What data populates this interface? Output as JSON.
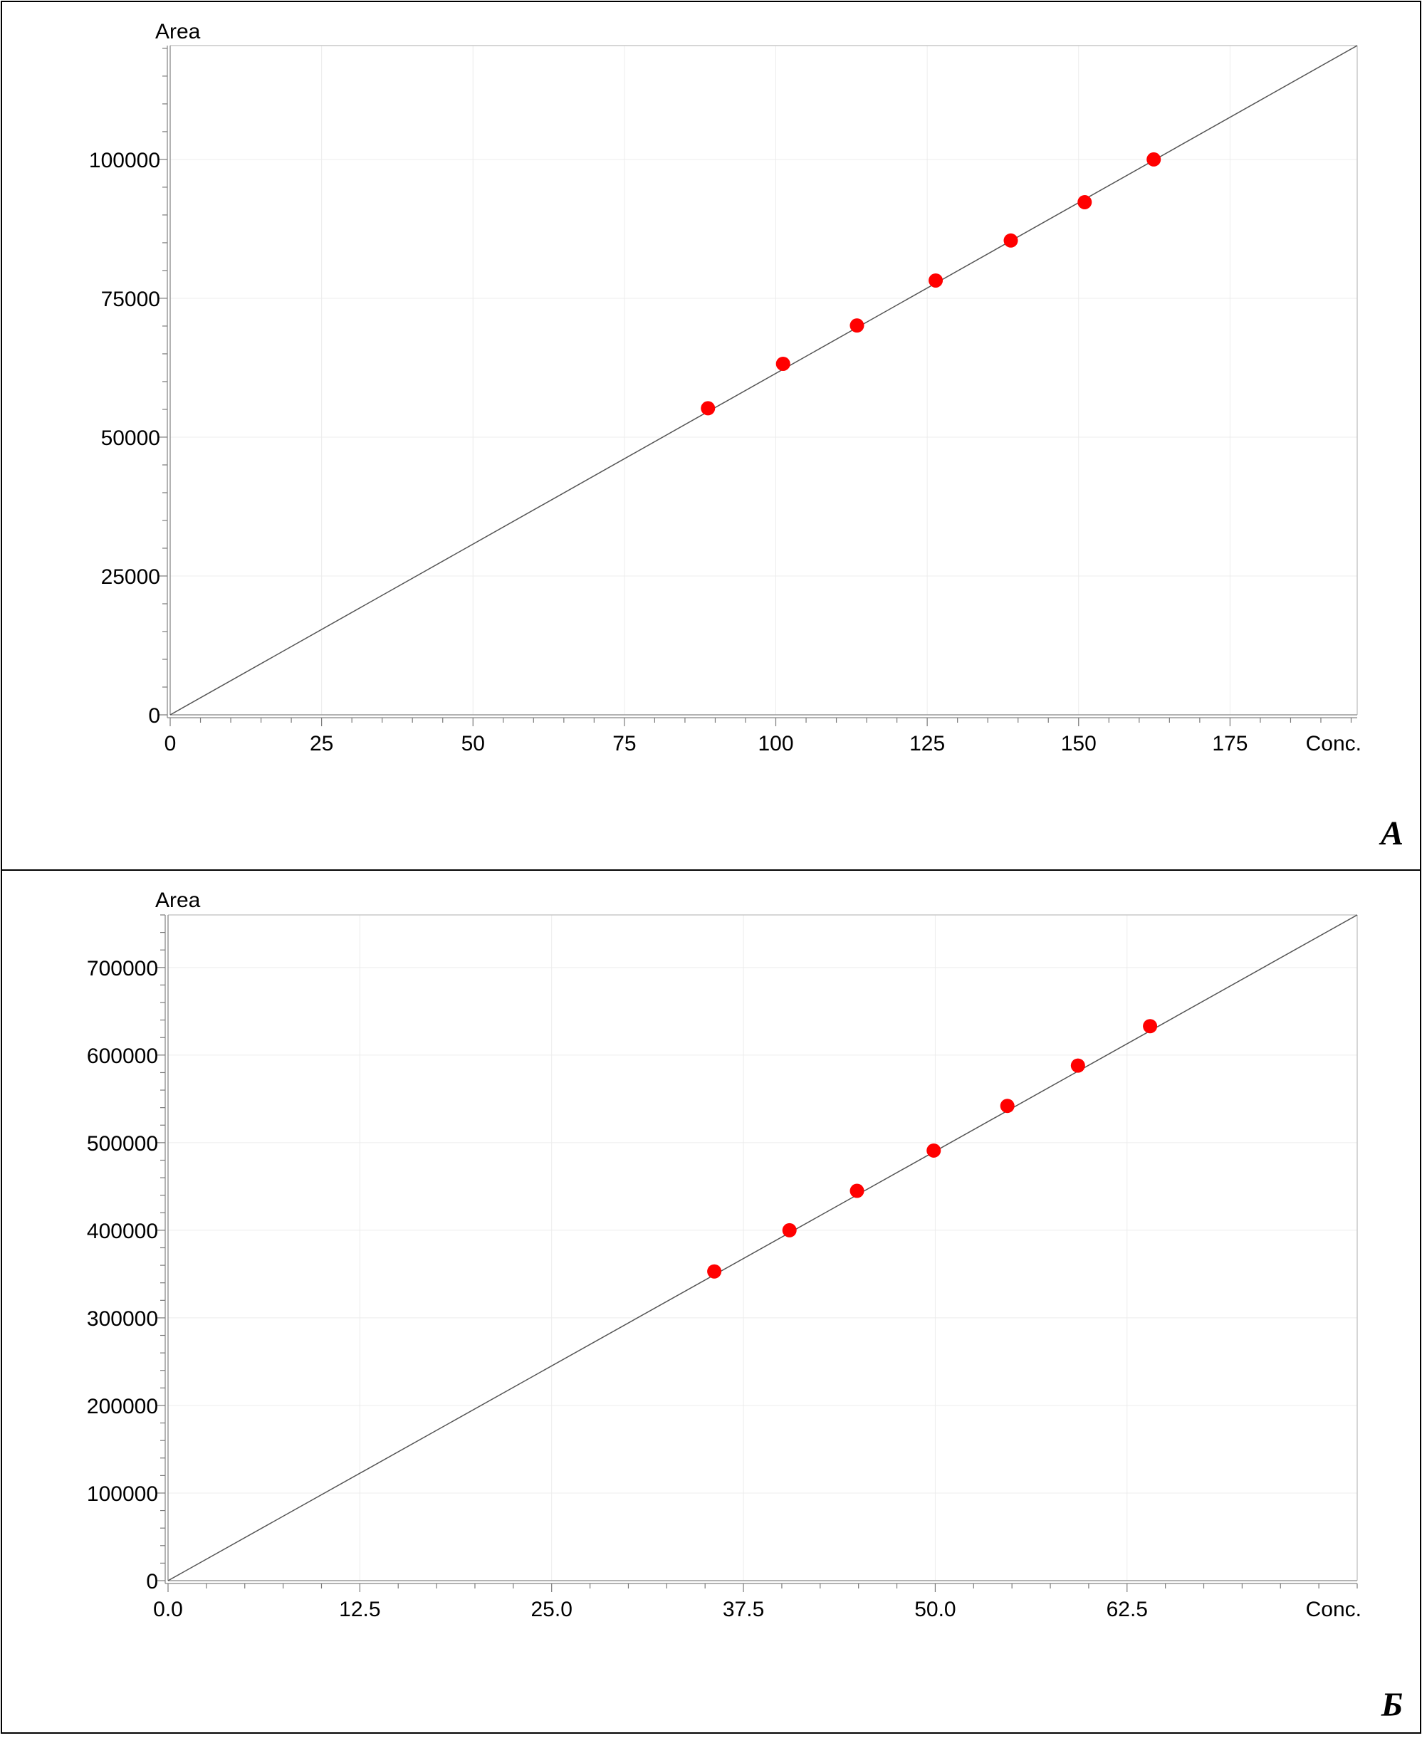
{
  "chart_data": [
    {
      "type": "scatter",
      "panel_label": "A",
      "xlabel": "Conc.",
      "ylabel": "Area",
      "xlim": [
        0,
        196
      ],
      "ylim": [
        0,
        120500
      ],
      "xticks": [
        "0",
        "25",
        "50",
        "75",
        "100",
        "125",
        "150",
        "175"
      ],
      "xtick_values": [
        0,
        25,
        50,
        75,
        100,
        125,
        150,
        175
      ],
      "yticks": [
        "0",
        "25000",
        "50000",
        "75000",
        "100000"
      ],
      "ytick_values": [
        0,
        25000,
        50000,
        75000,
        100000
      ],
      "grid": true,
      "fit_line": {
        "x": [
          0,
          196
        ],
        "y": [
          0,
          120500
        ]
      },
      "points": [
        {
          "x": 88.8,
          "y": 55200
        },
        {
          "x": 101.2,
          "y": 63200
        },
        {
          "x": 113.4,
          "y": 70100
        },
        {
          "x": 126.4,
          "y": 78200
        },
        {
          "x": 138.8,
          "y": 85400
        },
        {
          "x": 151.0,
          "y": 92300
        },
        {
          "x": 162.4,
          "y": 100000
        }
      ],
      "colors": {
        "points": "#ff0000",
        "line": "#555555"
      }
    },
    {
      "type": "scatter",
      "panel_label": "Б",
      "xlabel": "Conc.",
      "ylabel": "Area",
      "xlim": [
        0,
        77.5
      ],
      "ylim": [
        0,
        760000
      ],
      "xticks": [
        "0.0",
        "12.5",
        "25.0",
        "37.5",
        "50.0",
        "62.5"
      ],
      "xtick_values": [
        0,
        12.5,
        25,
        37.5,
        50,
        62.5
      ],
      "yticks": [
        "0",
        "100000",
        "200000",
        "300000",
        "400000",
        "500000",
        "600000",
        "700000"
      ],
      "ytick_values": [
        0,
        100000,
        200000,
        300000,
        400000,
        500000,
        600000,
        700000
      ],
      "grid": true,
      "fit_line": {
        "x": [
          0,
          77.5
        ],
        "y": [
          0,
          760000
        ]
      },
      "points": [
        {
          "x": 35.6,
          "y": 353000
        },
        {
          "x": 40.5,
          "y": 400000
        },
        {
          "x": 44.9,
          "y": 445000
        },
        {
          "x": 49.9,
          "y": 491000
        },
        {
          "x": 54.7,
          "y": 542000
        },
        {
          "x": 59.3,
          "y": 588000
        },
        {
          "x": 64.0,
          "y": 633000
        }
      ],
      "colors": {
        "points": "#ff0000",
        "line": "#555555"
      }
    }
  ]
}
